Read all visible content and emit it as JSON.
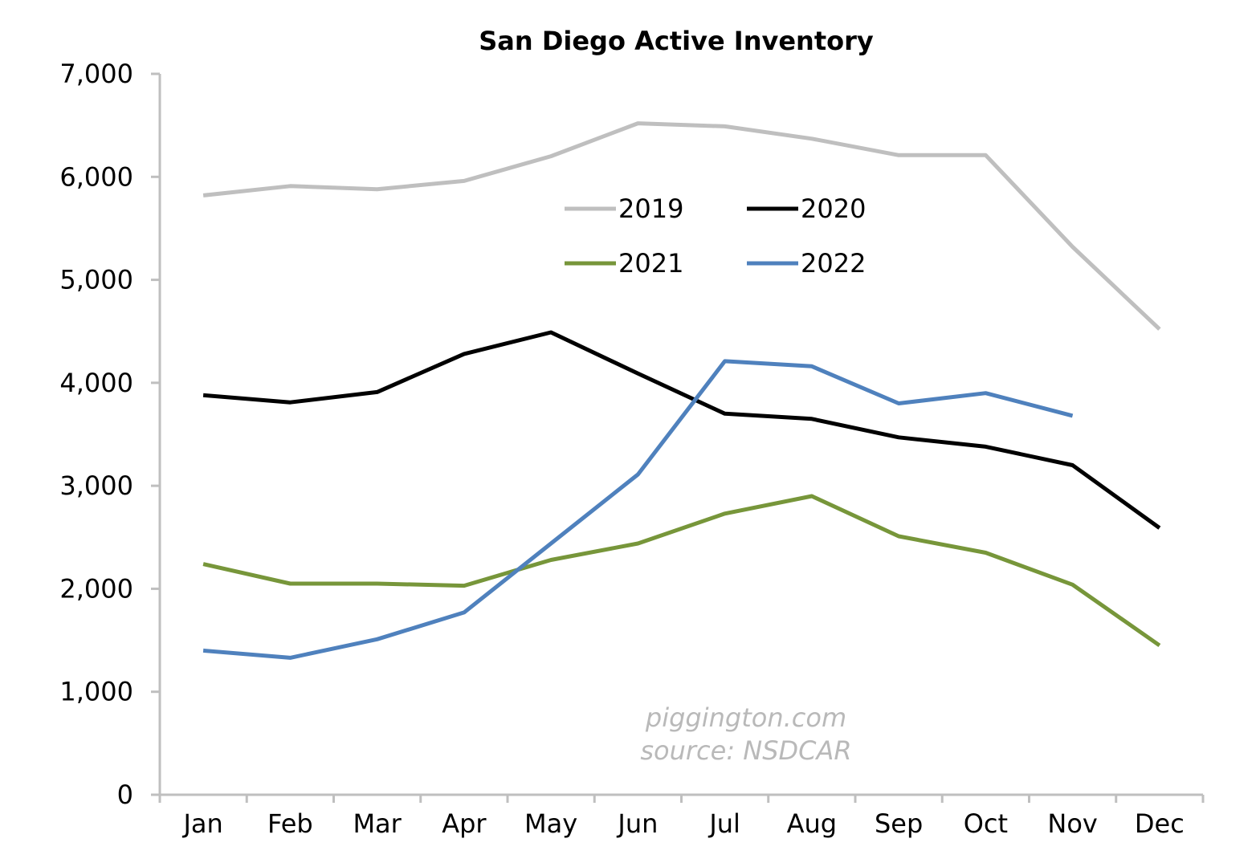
{
  "chart_data": {
    "type": "line",
    "title": "San Diego Active Inventory",
    "xlabel": "",
    "ylabel": "",
    "categories": [
      "Jan",
      "Feb",
      "Mar",
      "Apr",
      "May",
      "Jun",
      "Jul",
      "Aug",
      "Sep",
      "Oct",
      "Nov",
      "Dec"
    ],
    "ylim": [
      0,
      7000
    ],
    "yticks": [
      0,
      1000,
      2000,
      3000,
      4000,
      5000,
      6000,
      7000
    ],
    "ytick_labels": [
      "0",
      "1,000",
      "2,000",
      "3,000",
      "4,000",
      "5,000",
      "6,000",
      "7,000"
    ],
    "grid": false,
    "legend_position": "top-center",
    "series": [
      {
        "name": "2019",
        "color": "#bfbfbf",
        "values": [
          5820,
          5910,
          5880,
          5960,
          6200,
          6520,
          6490,
          6370,
          6210,
          6210,
          5320,
          4520
        ]
      },
      {
        "name": "2020",
        "color": "#000000",
        "values": [
          3880,
          3810,
          3910,
          4280,
          4490,
          4090,
          3700,
          3650,
          3470,
          3380,
          3200,
          2590
        ]
      },
      {
        "name": "2021",
        "color": "#77963a",
        "values": [
          2240,
          2050,
          2050,
          2030,
          2280,
          2440,
          2730,
          2900,
          2510,
          2350,
          2040,
          1450
        ]
      },
      {
        "name": "2022",
        "color": "#4f81bd",
        "values": [
          1400,
          1330,
          1510,
          1770,
          2440,
          3110,
          4210,
          4160,
          3800,
          3900,
          3680,
          null
        ]
      }
    ],
    "annotations": [
      "piggington.com",
      "source: NSDCAR"
    ]
  }
}
